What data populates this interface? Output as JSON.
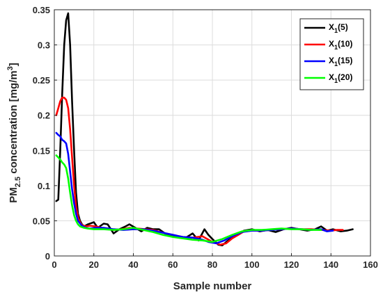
{
  "chart_data": {
    "type": "line",
    "title": "",
    "xlabel": "Sample number",
    "ylabel": "PM2.5 concentration [mg/m3]",
    "ylabel_parts": {
      "main": "PM",
      "sub": "2.5",
      "rest": " concentration [mg/m",
      "sup": "3",
      "end": "]"
    },
    "xlim": [
      0,
      160
    ],
    "ylim": [
      0,
      0.35
    ],
    "x_ticks": [
      0,
      20,
      40,
      60,
      80,
      100,
      120,
      140,
      160
    ],
    "y_ticks": [
      0,
      0.05,
      0.1,
      0.15,
      0.2,
      0.25,
      0.3,
      0.35
    ],
    "x_tick_labels": [
      "0",
      "20",
      "40",
      "60",
      "80",
      "100",
      "120",
      "140",
      "160"
    ],
    "y_tick_labels": [
      "0",
      "0.05",
      "0.1",
      "0.15",
      "0.2",
      "0.25",
      "0.3",
      "0.35"
    ],
    "grid": true,
    "legend_position": "top-right",
    "series": [
      {
        "name": "X1(5)",
        "name_main": "X",
        "name_sub": "1",
        "name_rest": "(5)",
        "color": "#000000",
        "x": [
          1,
          2,
          3,
          4,
          5,
          6,
          7,
          8,
          9,
          10,
          11,
          12,
          13,
          14,
          15,
          17,
          20,
          22,
          25,
          27,
          30,
          33,
          36,
          38,
          41,
          44,
          47,
          50,
          53,
          56,
          60,
          63,
          66,
          70,
          73,
          76,
          78,
          80,
          83,
          85,
          87,
          90,
          93,
          96,
          100,
          104,
          108,
          112,
          116,
          120,
          124,
          128,
          132,
          135,
          138,
          141,
          145,
          148,
          151
        ],
        "y": [
          0.078,
          0.08,
          0.15,
          0.23,
          0.3,
          0.335,
          0.345,
          0.3,
          0.22,
          0.15,
          0.09,
          0.06,
          0.05,
          0.045,
          0.042,
          0.045,
          0.048,
          0.04,
          0.046,
          0.045,
          0.032,
          0.038,
          0.042,
          0.045,
          0.04,
          0.035,
          0.04,
          0.038,
          0.038,
          0.032,
          0.028,
          0.026,
          0.025,
          0.032,
          0.022,
          0.038,
          0.03,
          0.024,
          0.016,
          0.015,
          0.02,
          0.026,
          0.03,
          0.036,
          0.038,
          0.035,
          0.037,
          0.034,
          0.038,
          0.04,
          0.038,
          0.036,
          0.038,
          0.042,
          0.036,
          0.038,
          0.035,
          0.036,
          0.038
        ]
      },
      {
        "name": "X1(10)",
        "name_main": "X",
        "name_sub": "1",
        "name_rest": "(10)",
        "color": "#ff0000",
        "x": [
          1,
          2,
          3,
          4,
          5,
          6,
          7,
          8,
          9,
          10,
          11,
          12,
          13,
          14,
          16,
          18,
          21,
          24,
          27,
          30,
          34,
          38,
          42,
          46,
          50,
          55,
          60,
          65,
          70,
          75,
          80,
          84,
          87,
          90,
          93,
          96,
          100,
          105,
          110,
          115,
          120,
          125,
          130,
          135,
          140,
          143,
          146
        ],
        "y": [
          0.2,
          0.21,
          0.22,
          0.225,
          0.225,
          0.222,
          0.21,
          0.18,
          0.14,
          0.1,
          0.07,
          0.055,
          0.048,
          0.044,
          0.042,
          0.043,
          0.042,
          0.04,
          0.039,
          0.037,
          0.038,
          0.04,
          0.039,
          0.038,
          0.037,
          0.033,
          0.03,
          0.027,
          0.026,
          0.028,
          0.02,
          0.016,
          0.018,
          0.025,
          0.03,
          0.035,
          0.036,
          0.036,
          0.037,
          0.038,
          0.039,
          0.038,
          0.038,
          0.037,
          0.036,
          0.037,
          0.037
        ]
      },
      {
        "name": "X1(15)",
        "name_main": "X",
        "name_sub": "1",
        "name_rest": "(15)",
        "color": "#0000ff",
        "x": [
          1,
          2,
          3,
          4,
          5,
          6,
          7,
          8,
          9,
          10,
          11,
          12,
          14,
          16,
          18,
          21,
          25,
          30,
          35,
          40,
          45,
          50,
          55,
          60,
          65,
          70,
          75,
          78,
          82,
          86,
          90,
          95,
          100,
          105,
          110,
          115,
          120,
          125,
          130,
          135,
          138,
          141
        ],
        "y": [
          0.175,
          0.172,
          0.17,
          0.165,
          0.163,
          0.16,
          0.145,
          0.12,
          0.095,
          0.075,
          0.06,
          0.05,
          0.043,
          0.04,
          0.039,
          0.04,
          0.04,
          0.038,
          0.037,
          0.038,
          0.038,
          0.036,
          0.033,
          0.03,
          0.027,
          0.026,
          0.023,
          0.02,
          0.018,
          0.022,
          0.028,
          0.034,
          0.036,
          0.036,
          0.037,
          0.038,
          0.039,
          0.038,
          0.037,
          0.038,
          0.035,
          0.036
        ]
      },
      {
        "name": "X1(20)",
        "name_main": "X",
        "name_sub": "1",
        "name_rest": "(20)",
        "color": "#00ff00",
        "x": [
          1,
          2,
          3,
          4,
          5,
          6,
          7,
          8,
          9,
          10,
          11,
          12,
          13,
          15,
          17,
          20,
          25,
          30,
          35,
          40,
          45,
          50,
          55,
          60,
          65,
          70,
          75,
          80,
          85,
          90,
          95,
          100,
          105,
          110,
          115,
          120,
          125,
          130,
          135
        ],
        "y": [
          0.143,
          0.14,
          0.137,
          0.133,
          0.13,
          0.125,
          0.11,
          0.09,
          0.072,
          0.058,
          0.05,
          0.045,
          0.042,
          0.04,
          0.039,
          0.038,
          0.038,
          0.037,
          0.038,
          0.04,
          0.037,
          0.034,
          0.03,
          0.027,
          0.025,
          0.023,
          0.022,
          0.02,
          0.024,
          0.03,
          0.035,
          0.037,
          0.037,
          0.038,
          0.039,
          0.038,
          0.038,
          0.037,
          0.037
        ]
      }
    ]
  }
}
